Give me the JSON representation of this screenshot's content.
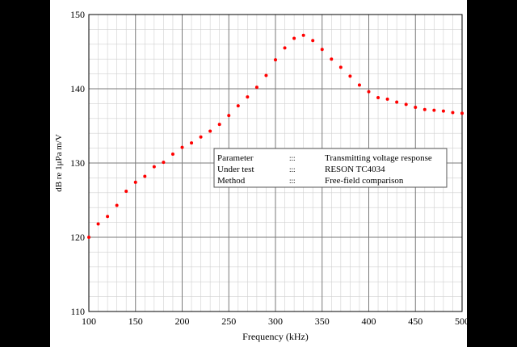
{
  "chart_data": {
    "type": "scatter",
    "title": "",
    "xlabel": "Frequency (kHz)",
    "ylabel": "dB re 1μPa m/V",
    "xlim": [
      100,
      500
    ],
    "ylim": [
      110,
      150
    ],
    "x_ticks": [
      100,
      150,
      200,
      250,
      300,
      350,
      400,
      450,
      500
    ],
    "y_ticks": [
      110,
      120,
      130,
      140,
      150
    ],
    "grid": true,
    "minor_grid_x_step": 10,
    "minor_grid_y_step": 2,
    "marker_color": "#ff0000",
    "series": [
      {
        "x": [
          100,
          110,
          120,
          130,
          140,
          150,
          160,
          170,
          180,
          190,
          200,
          210,
          220,
          230,
          240,
          250,
          260,
          270,
          280,
          290,
          300,
          310,
          320,
          330,
          340,
          350,
          360,
          370,
          380,
          390,
          400,
          410,
          420,
          430,
          440,
          450,
          460,
          470,
          480,
          490,
          500
        ],
        "y": [
          120.0,
          121.8,
          122.8,
          124.3,
          126.2,
          127.4,
          128.2,
          129.5,
          130.1,
          131.2,
          132.1,
          132.7,
          133.5,
          134.3,
          135.2,
          136.4,
          137.7,
          138.9,
          140.2,
          141.8,
          143.9,
          145.5,
          146.8,
          147.2,
          146.5,
          145.3,
          144.0,
          142.9,
          141.7,
          140.5,
          139.6,
          138.8,
          138.6,
          138.2,
          137.9,
          137.5,
          137.2,
          137.1,
          137.0,
          136.8,
          136.7
        ]
      }
    ]
  },
  "info_box": {
    "rows": [
      {
        "key": "Parameter",
        "sep": ":::",
        "value": "Transmitting voltage response"
      },
      {
        "key": "Under test",
        "sep": ":::",
        "value": "RESON TC4034"
      },
      {
        "key": "Method",
        "sep": ":::",
        "value": "Free-field comparison"
      }
    ]
  }
}
